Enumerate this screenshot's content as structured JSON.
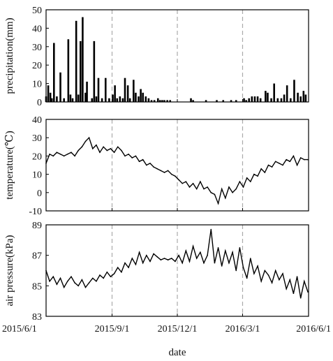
{
  "chart_data": [
    {
      "type": "bar",
      "ylabel": "precipitation(mm)",
      "ylim": [
        0,
        50
      ],
      "yticks": [
        0,
        10,
        20,
        30,
        40,
        50
      ],
      "xlim": [
        "2015/6/1",
        "2016/6/1"
      ],
      "series": [
        {
          "x": [
            "2015/6/1",
            "2015/6/4",
            "2015/6/7",
            "2015/6/9",
            "2015/6/12",
            "2015/6/16",
            "2015/6/21",
            "2015/6/26",
            "2015/7/2",
            "2015/7/5",
            "2015/7/8",
            "2015/7/13",
            "2015/7/16",
            "2015/7/19",
            "2015/7/22",
            "2015/7/26",
            "2015/7/28",
            "2015/8/4",
            "2015/8/7",
            "2015/8/10",
            "2015/8/13",
            "2015/8/18",
            "2015/8/23",
            "2015/8/28",
            "2015/9/2",
            "2015/9/5",
            "2015/9/8",
            "2015/9/12",
            "2015/9/16",
            "2015/9/19",
            "2015/9/23",
            "2015/9/26",
            "2015/10/1",
            "2015/10/4",
            "2015/10/8",
            "2015/10/11",
            "2015/10/14",
            "2015/10/18",
            "2015/10/22",
            "2015/10/26",
            "2015/10/30",
            "2015/11/4",
            "2015/11/7",
            "2015/11/10",
            "2015/11/13",
            "2015/11/17",
            "2015/11/21",
            "2015/12/20",
            "2015/12/23",
            "2016/1/10",
            "2016/1/25",
            "2016/2/3",
            "2016/2/14",
            "2016/2/21",
            "2016/3/3",
            "2016/3/6",
            "2016/3/10",
            "2016/3/14",
            "2016/3/18",
            "2016/3/22",
            "2016/3/26",
            "2016/4/2",
            "2016/4/5",
            "2016/4/10",
            "2016/4/14",
            "2016/4/19",
            "2016/4/24",
            "2016/4/28",
            "2016/5/2",
            "2016/5/7",
            "2016/5/12",
            "2016/5/17",
            "2016/5/21",
            "2016/5/25",
            "2016/5/28"
          ],
          "values": [
            3,
            9,
            5,
            2,
            32,
            3,
            16,
            2,
            34,
            4,
            2,
            44,
            4,
            33,
            46,
            5,
            11,
            2,
            33,
            3,
            13,
            2,
            13,
            2,
            4,
            9,
            2,
            3,
            2,
            13,
            9,
            2,
            12,
            5,
            3,
            7,
            5,
            3,
            2,
            1,
            1,
            2,
            1,
            1,
            1,
            1,
            1,
            2,
            1,
            1,
            1,
            1,
            1,
            1,
            2,
            1,
            2,
            3,
            3,
            3,
            2,
            6,
            5,
            2,
            10,
            2,
            2,
            4,
            9,
            2,
            12,
            5,
            3,
            6,
            4
          ]
        }
      ]
    },
    {
      "type": "line",
      "ylabel": "temperature(℃)",
      "ylim": [
        -10,
        40
      ],
      "yticks": [
        -10,
        0,
        10,
        20,
        30,
        40
      ],
      "xlim": [
        "2015/6/1",
        "2016/6/1"
      ],
      "series": [
        {
          "x": [
            "2015/6/1",
            "2015/6/6",
            "2015/6/11",
            "2015/6/16",
            "2015/6/21",
            "2015/6/26",
            "2015/7/1",
            "2015/7/6",
            "2015/7/11",
            "2015/7/16",
            "2015/7/21",
            "2015/7/26",
            "2015/7/31",
            "2015/8/5",
            "2015/8/10",
            "2015/8/15",
            "2015/8/20",
            "2015/8/25",
            "2015/8/30",
            "2015/9/4",
            "2015/9/9",
            "2015/9/14",
            "2015/9/19",
            "2015/9/24",
            "2015/9/29",
            "2015/10/4",
            "2015/10/9",
            "2015/10/14",
            "2015/10/19",
            "2015/10/24",
            "2015/10/29",
            "2015/11/3",
            "2015/11/8",
            "2015/11/13",
            "2015/11/18",
            "2015/11/23",
            "2015/11/28",
            "2015/12/3",
            "2015/12/8",
            "2015/12/13",
            "2015/12/18",
            "2015/12/23",
            "2015/12/28",
            "2016/1/2",
            "2016/1/7",
            "2016/1/12",
            "2016/1/17",
            "2016/1/22",
            "2016/1/27",
            "2016/2/1",
            "2016/2/6",
            "2016/2/11",
            "2016/2/16",
            "2016/2/21",
            "2016/2/26",
            "2016/3/2",
            "2016/3/7",
            "2016/3/12",
            "2016/3/17",
            "2016/3/22",
            "2016/3/27",
            "2016/4/1",
            "2016/4/6",
            "2016/4/11",
            "2016/4/16",
            "2016/4/21",
            "2016/4/26",
            "2016/5/1",
            "2016/5/6",
            "2016/5/11",
            "2016/5/16",
            "2016/5/21",
            "2016/5/26",
            "2016/5/31"
          ],
          "values": [
            16,
            21,
            20,
            22,
            21,
            20,
            21,
            22,
            20,
            23,
            25,
            28,
            30,
            24,
            26,
            22,
            25,
            23,
            24,
            22,
            25,
            23,
            20,
            21,
            19,
            20,
            17,
            18,
            15,
            16,
            14,
            13,
            12,
            11,
            12,
            10,
            9,
            7,
            5,
            6,
            3,
            5,
            2,
            6,
            2,
            3,
            0,
            -1,
            -6,
            2,
            -3,
            3,
            0,
            2,
            6,
            3,
            8,
            6,
            10,
            9,
            13,
            11,
            15,
            14,
            17,
            16,
            15,
            18,
            17,
            20,
            15,
            19,
            18,
            18
          ]
        }
      ]
    },
    {
      "type": "line",
      "ylabel": "air pressure(kPa)",
      "xlabel": "date",
      "ylim": [
        83,
        89
      ],
      "yticks": [
        83,
        85,
        87,
        89
      ],
      "xlim": [
        "2015/6/1",
        "2016/6/1"
      ],
      "xticks": [
        "2015/6/1",
        "2015/9/1",
        "2015/12/1",
        "2016/3/1",
        "2016/6/1"
      ],
      "series": [
        {
          "x": [
            "2015/6/1",
            "2015/6/6",
            "2015/6/11",
            "2015/6/16",
            "2015/6/21",
            "2015/6/26",
            "2015/7/1",
            "2015/7/6",
            "2015/7/11",
            "2015/7/16",
            "2015/7/21",
            "2015/7/26",
            "2015/7/31",
            "2015/8/5",
            "2015/8/10",
            "2015/8/15",
            "2015/8/20",
            "2015/8/25",
            "2015/8/30",
            "2015/9/4",
            "2015/9/9",
            "2015/9/14",
            "2015/9/19",
            "2015/9/24",
            "2015/9/29",
            "2015/10/4",
            "2015/10/9",
            "2015/10/14",
            "2015/10/19",
            "2015/10/24",
            "2015/10/29",
            "2015/11/3",
            "2015/11/8",
            "2015/11/13",
            "2015/11/18",
            "2015/11/23",
            "2015/11/28",
            "2015/12/3",
            "2015/12/8",
            "2015/12/13",
            "2015/12/18",
            "2015/12/23",
            "2015/12/28",
            "2016/1/2",
            "2016/1/7",
            "2016/1/12",
            "2016/1/17",
            "2016/1/22",
            "2016/1/27",
            "2016/2/1",
            "2016/2/6",
            "2016/2/11",
            "2016/2/16",
            "2016/2/21",
            "2016/2/26",
            "2016/3/2",
            "2016/3/7",
            "2016/3/12",
            "2016/3/17",
            "2016/3/22",
            "2016/3/27",
            "2016/4/1",
            "2016/4/6",
            "2016/4/11",
            "2016/4/16",
            "2016/4/21",
            "2016/4/26",
            "2016/5/1",
            "2016/5/6",
            "2016/5/11",
            "2016/5/16",
            "2016/5/21",
            "2016/5/26",
            "2016/5/31"
          ],
          "values": [
            86.0,
            85.3,
            85.6,
            85.1,
            85.5,
            84.9,
            85.3,
            85.6,
            85.2,
            85.0,
            85.4,
            84.9,
            85.2,
            85.5,
            85.3,
            85.7,
            85.5,
            85.9,
            85.6,
            85.8,
            86.2,
            85.9,
            86.5,
            86.2,
            86.8,
            86.4,
            87.2,
            86.5,
            87.0,
            86.6,
            87.1,
            86.9,
            86.7,
            86.8,
            86.7,
            86.8,
            86.6,
            87.0,
            86.5,
            87.3,
            86.6,
            87.6,
            86.8,
            87.2,
            86.5,
            87.0,
            88.7,
            86.5,
            87.5,
            86.3,
            87.3,
            86.5,
            87.2,
            86.0,
            87.5,
            86.2,
            85.5,
            86.8,
            85.8,
            86.3,
            85.3,
            86.0,
            85.7,
            85.2,
            86.0,
            85.4,
            85.8,
            84.8,
            85.4,
            84.5,
            85.6,
            84.2,
            85.3,
            84.6
          ]
        }
      ]
    }
  ]
}
